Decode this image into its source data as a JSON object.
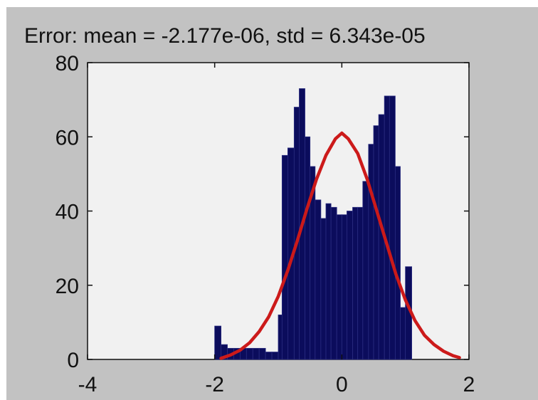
{
  "figure": {
    "background_color": "#c2c2c2",
    "plot_background_color": "#f1f1f1"
  },
  "chart_data": {
    "type": "bar",
    "title": "Error: mean = -2.177e-06, std = 6.343e-05",
    "xlabel": "",
    "ylabel": "",
    "xlim": [
      -4,
      2
    ],
    "ylim": [
      0,
      80
    ],
    "xticks": [
      "-4",
      "-2",
      "0",
      "2"
    ],
    "yticks": [
      "0",
      "20",
      "40",
      "60",
      "80"
    ],
    "grid": false,
    "bar_color": "#0b0c5c",
    "bins": [
      {
        "x0": -2.0,
        "x1": -1.9,
        "count": 9
      },
      {
        "x0": -1.9,
        "x1": -1.8,
        "count": 4
      },
      {
        "x0": -1.8,
        "x1": -1.7,
        "count": 3
      },
      {
        "x0": -1.7,
        "x1": -1.6,
        "count": 3
      },
      {
        "x0": -1.6,
        "x1": -1.5,
        "count": 3
      },
      {
        "x0": -1.5,
        "x1": -1.4,
        "count": 3
      },
      {
        "x0": -1.4,
        "x1": -1.3,
        "count": 3
      },
      {
        "x0": -1.3,
        "x1": -1.2,
        "count": 3
      },
      {
        "x0": -1.2,
        "x1": -1.1,
        "count": 2
      },
      {
        "x0": -1.1,
        "x1": -1.0,
        "count": 2
      },
      {
        "x0": -1.0,
        "x1": -0.94,
        "count": 12
      },
      {
        "x0": -0.94,
        "x1": -0.85,
        "count": 55
      },
      {
        "x0": -0.85,
        "x1": -0.75,
        "count": 57
      },
      {
        "x0": -0.75,
        "x1": -0.67,
        "count": 68
      },
      {
        "x0": -0.67,
        "x1": -0.58,
        "count": 73
      },
      {
        "x0": -0.58,
        "x1": -0.5,
        "count": 60
      },
      {
        "x0": -0.5,
        "x1": -0.42,
        "count": 52
      },
      {
        "x0": -0.42,
        "x1": -0.33,
        "count": 43
      },
      {
        "x0": -0.33,
        "x1": -0.25,
        "count": 38
      },
      {
        "x0": -0.25,
        "x1": -0.17,
        "count": 42
      },
      {
        "x0": -0.17,
        "x1": -0.08,
        "count": 41
      },
      {
        "x0": -0.08,
        "x1": 0.0,
        "count": 39
      },
      {
        "x0": 0.0,
        "x1": 0.08,
        "count": 39
      },
      {
        "x0": 0.08,
        "x1": 0.17,
        "count": 40
      },
      {
        "x0": 0.17,
        "x1": 0.25,
        "count": 41
      },
      {
        "x0": 0.25,
        "x1": 0.33,
        "count": 41
      },
      {
        "x0": 0.33,
        "x1": 0.42,
        "count": 48
      },
      {
        "x0": 0.42,
        "x1": 0.5,
        "count": 58
      },
      {
        "x0": 0.5,
        "x1": 0.58,
        "count": 63
      },
      {
        "x0": 0.58,
        "x1": 0.67,
        "count": 66
      },
      {
        "x0": 0.67,
        "x1": 0.75,
        "count": 71
      },
      {
        "x0": 0.75,
        "x1": 0.84,
        "count": 71
      },
      {
        "x0": 0.84,
        "x1": 0.92,
        "count": 52
      },
      {
        "x0": 0.92,
        "x1": 1.0,
        "count": 14
      },
      {
        "x0": 1.0,
        "x1": 1.1,
        "count": 25
      }
    ],
    "fit_curve": {
      "type": "line",
      "color": "#cc1a1a",
      "points": [
        [
          -1.9,
          0.3
        ],
        [
          -1.75,
          1.2
        ],
        [
          -1.6,
          2.5
        ],
        [
          -1.45,
          4.5
        ],
        [
          -1.3,
          7.5
        ],
        [
          -1.15,
          11.5
        ],
        [
          -1.0,
          17.0
        ],
        [
          -0.85,
          24.0
        ],
        [
          -0.7,
          32.0
        ],
        [
          -0.55,
          40.5
        ],
        [
          -0.4,
          48.5
        ],
        [
          -0.25,
          55.0
        ],
        [
          -0.1,
          59.5
        ],
        [
          0.0,
          61.0
        ],
        [
          0.1,
          59.5
        ],
        [
          0.25,
          55.5
        ],
        [
          0.4,
          48.5
        ],
        [
          0.55,
          40.0
        ],
        [
          0.7,
          31.5
        ],
        [
          0.85,
          23.0
        ],
        [
          1.0,
          16.0
        ],
        [
          1.15,
          10.5
        ],
        [
          1.3,
          6.5
        ],
        [
          1.45,
          4.0
        ],
        [
          1.6,
          2.2
        ],
        [
          1.75,
          1.0
        ],
        [
          1.85,
          0.5
        ]
      ]
    }
  }
}
